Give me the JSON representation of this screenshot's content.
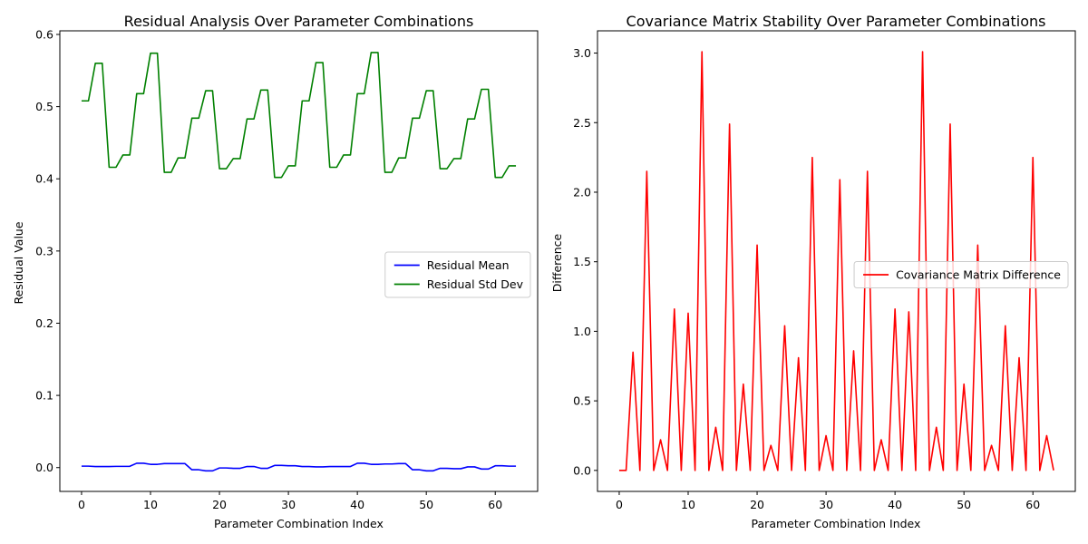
{
  "chart_data": [
    {
      "type": "line",
      "title": "Residual Analysis Over Parameter Combinations",
      "xlabel": "Parameter Combination Index",
      "ylabel": "Residual Value",
      "xlim": [
        -3.15,
        66.15
      ],
      "ylim": [
        -0.033,
        0.605
      ],
      "xticks": [
        0,
        10,
        20,
        30,
        40,
        50,
        60
      ],
      "yticks": [
        0.0,
        0.1,
        0.2,
        0.3,
        0.4,
        0.5,
        0.6
      ],
      "ytick_decimals": 1,
      "legend_position": "center-right",
      "grid": false,
      "series": [
        {
          "name": "Residual Mean",
          "color": "#0000ff",
          "values": [
            0.002,
            0.002,
            0.0015,
            0.0015,
            0.0015,
            0.0017,
            0.0017,
            0.0018,
            0.006,
            0.006,
            0.0045,
            0.0045,
            0.0055,
            0.0055,
            0.0055,
            0.0055,
            -0.003,
            -0.003,
            -0.0045,
            -0.0045,
            -0.0005,
            -0.0005,
            -0.001,
            -0.001,
            0.0015,
            0.0015,
            -0.001,
            -0.001,
            0.003,
            0.003,
            0.0025,
            0.0025,
            0.0015,
            0.0015,
            0.001,
            0.001,
            0.0015,
            0.0015,
            0.0015,
            0.0015,
            0.006,
            0.006,
            0.0045,
            0.0045,
            0.005,
            0.005,
            0.0055,
            0.0055,
            -0.003,
            -0.003,
            -0.0045,
            -0.0045,
            -0.001,
            -0.001,
            -0.0015,
            -0.0015,
            0.001,
            0.001,
            -0.002,
            -0.002,
            0.0025,
            0.0025,
            0.002,
            0.002
          ]
        },
        {
          "name": "Residual Std Dev",
          "color": "#008000",
          "values": [
            0.508,
            0.508,
            0.56,
            0.56,
            0.416,
            0.416,
            0.433,
            0.433,
            0.518,
            0.518,
            0.574,
            0.574,
            0.409,
            0.409,
            0.429,
            0.429,
            0.484,
            0.484,
            0.522,
            0.522,
            0.414,
            0.414,
            0.428,
            0.428,
            0.483,
            0.483,
            0.523,
            0.523,
            0.402,
            0.402,
            0.418,
            0.418,
            0.508,
            0.508,
            0.561,
            0.561,
            0.416,
            0.416,
            0.433,
            0.433,
            0.518,
            0.518,
            0.575,
            0.575,
            0.409,
            0.409,
            0.429,
            0.429,
            0.484,
            0.484,
            0.522,
            0.522,
            0.414,
            0.414,
            0.428,
            0.428,
            0.483,
            0.483,
            0.524,
            0.524,
            0.402,
            0.402,
            0.418,
            0.418
          ]
        }
      ]
    },
    {
      "type": "line",
      "title": "Covariance Matrix Stability Over Parameter Combinations",
      "xlabel": "Parameter Combination Index",
      "ylabel": "Difference",
      "xlim": [
        -3.15,
        66.15
      ],
      "ylim": [
        -0.151,
        3.16
      ],
      "xticks": [
        0,
        10,
        20,
        30,
        40,
        50,
        60
      ],
      "yticks": [
        0.0,
        0.5,
        1.0,
        1.5,
        2.0,
        2.5,
        3.0
      ],
      "ytick_decimals": 1,
      "legend_position": "center-right",
      "grid": false,
      "series": [
        {
          "name": "Covariance Matrix Difference",
          "color": "#ff0000",
          "values": [
            0.0,
            0.0,
            0.85,
            0.0,
            2.15,
            0.0,
            0.22,
            0.0,
            1.16,
            0.0,
            1.13,
            0.0,
            3.01,
            0.0,
            0.31,
            0.0,
            2.49,
            0.0,
            0.62,
            0.0,
            1.62,
            0.0,
            0.18,
            0.0,
            1.04,
            0.0,
            0.81,
            0.0,
            2.25,
            0.0,
            0.25,
            0.0,
            2.09,
            0.0,
            0.86,
            0.0,
            2.15,
            0.0,
            0.22,
            0.0,
            1.16,
            0.0,
            1.14,
            0.0,
            3.01,
            0.0,
            0.31,
            0.0,
            2.49,
            0.0,
            0.62,
            0.0,
            1.62,
            0.0,
            0.18,
            0.0,
            1.04,
            0.0,
            0.81,
            0.0,
            2.25,
            0.0,
            0.25,
            0.0
          ]
        }
      ]
    }
  ]
}
